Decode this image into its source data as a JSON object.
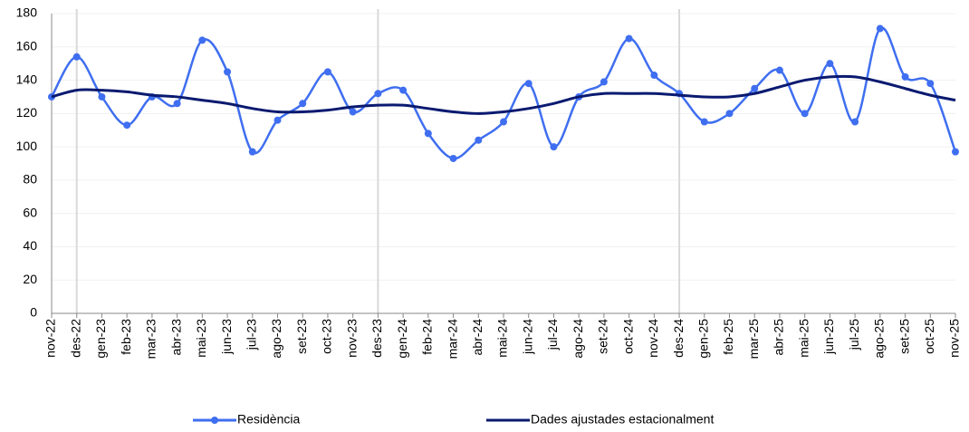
{
  "chart_data": {
    "type": "line",
    "categories": [
      "nov-22",
      "des-22",
      "gen-23",
      "feb-23",
      "mar-23",
      "abr-23",
      "mai-23",
      "jun-23",
      "jul-23",
      "ago-23",
      "set-23",
      "oct-23",
      "nov-23",
      "des-23",
      "gen-24",
      "feb-24",
      "mar-24",
      "abr-24",
      "mai-24",
      "jun-24",
      "jul-24",
      "ago-24",
      "set-24",
      "oct-24",
      "nov-24",
      "des-24",
      "gen-25",
      "feb-25",
      "mar-25",
      "abr-25",
      "mai-25",
      "jun-25",
      "jul-25",
      "ago-25",
      "set-25",
      "oct-25",
      "nov-25"
    ],
    "series": [
      {
        "name": "Residència",
        "color": "#3f6ef0",
        "marker": true,
        "values": [
          130,
          154,
          130,
          113,
          130,
          126,
          164,
          145,
          97,
          116,
          126,
          145,
          121,
          132,
          134,
          108,
          93,
          104,
          115,
          138,
          100,
          130,
          139,
          165,
          143,
          132,
          115,
          120,
          135,
          146,
          120,
          150,
          115,
          171,
          142,
          138,
          97
        ]
      },
      {
        "name": "Dades ajustades estacionalment",
        "color": "#0a1a70",
        "marker": false,
        "values": [
          130,
          134,
          134,
          133,
          131,
          130,
          128,
          126,
          123,
          121,
          121,
          122,
          124,
          125,
          125,
          123,
          121,
          120,
          121,
          123,
          126,
          130,
          132,
          132,
          132,
          131,
          130,
          130,
          132,
          136,
          140,
          142,
          142,
          139,
          135,
          131,
          128
        ]
      }
    ],
    "ylim": [
      0,
      180
    ],
    "yticks": [
      0,
      20,
      40,
      60,
      80,
      100,
      120,
      140,
      160,
      180
    ],
    "grid": true,
    "smooth": true,
    "legend": "bottom"
  }
}
